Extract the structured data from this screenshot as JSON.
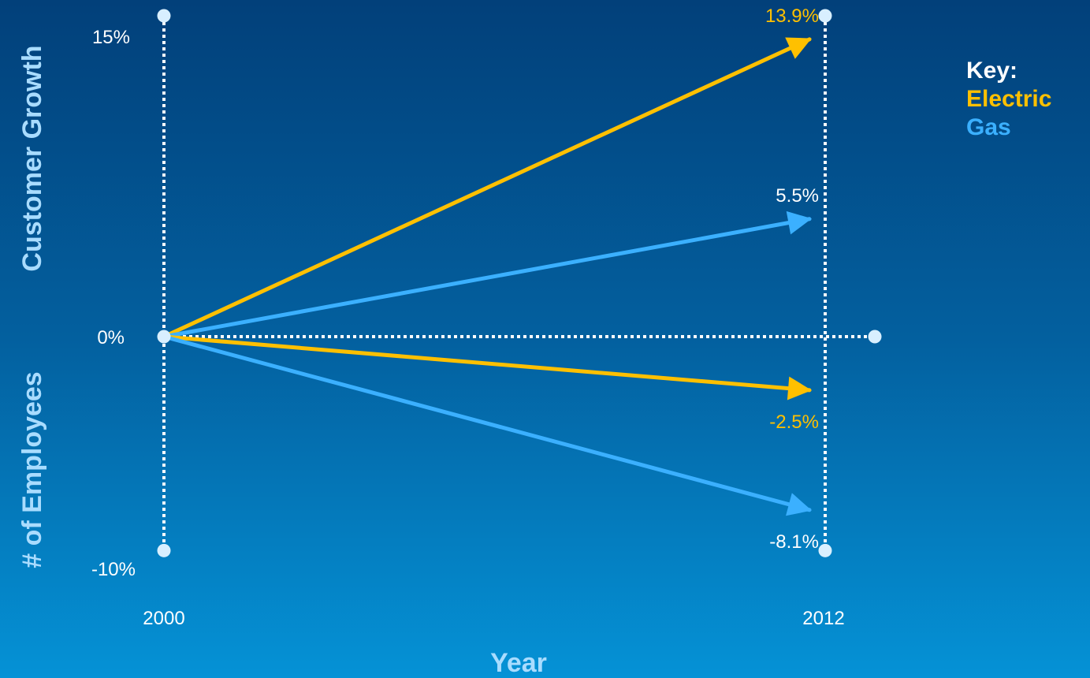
{
  "chart_data": {
    "type": "line",
    "ylabel_positive": "Customer Growth",
    "ylabel_negative": "# of Employees",
    "xlabel": "Year",
    "x_ticks": [
      "2000",
      "2012"
    ],
    "y_ticks": [
      "15%",
      "0%",
      "-10%"
    ],
    "y_range": [
      -10,
      15
    ],
    "series": [
      {
        "name": "Electric",
        "metric": "Customer Growth",
        "x": [
          2000,
          2012
        ],
        "values": [
          0,
          13.9
        ],
        "label": "13.9%",
        "color": "#ffc000"
      },
      {
        "name": "Gas",
        "metric": "Customer Growth",
        "x": [
          2000,
          2012
        ],
        "values": [
          0,
          5.5
        ],
        "label": "5.5%",
        "color": "#3bb0ff"
      },
      {
        "name": "Electric",
        "metric": "# of Employees",
        "x": [
          2000,
          2012
        ],
        "values": [
          0,
          -2.5
        ],
        "label": "-2.5%",
        "color": "#ffc000"
      },
      {
        "name": "Gas",
        "metric": "# of Employees",
        "x": [
          2000,
          2012
        ],
        "values": [
          0,
          -8.1
        ],
        "label": "-8.1%",
        "color": "#3bb0ff"
      }
    ],
    "grid": "dotted axes",
    "legend_position": "top-right"
  },
  "legend": {
    "title": "Key:",
    "items": [
      {
        "label": "Electric",
        "color": "#ffc000"
      },
      {
        "label": "Gas",
        "color": "#3bb0ff"
      }
    ]
  }
}
